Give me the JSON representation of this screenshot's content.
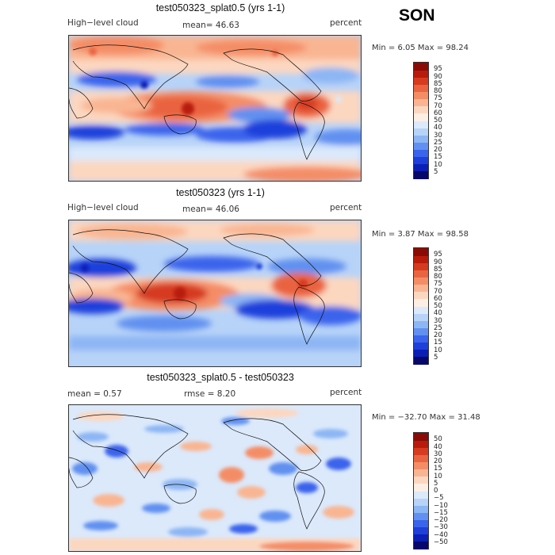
{
  "season": "SON",
  "colors": {
    "scale": [
      "#08086b",
      "#0b1fb5",
      "#1f3fdb",
      "#3a64ec",
      "#6190f0",
      "#8db6f4",
      "#b7d3f8",
      "#dbe9fb",
      "#fdeee4",
      "#fcd7c0",
      "#f9b592",
      "#f48d66",
      "#ea6441",
      "#d63b20",
      "#b81b0b",
      "#8a0a05"
    ]
  },
  "panels": [
    {
      "title": "test050323_splat0.5 (yrs 1-1)",
      "left_label": "High−level cloud",
      "center_label": "mean=  46.63",
      "right_label": "percent",
      "stats": "Min =    6.05 Max =   98.24",
      "colorbar_ticks": [
        "95",
        "90",
        "85",
        "80",
        "75",
        "70",
        "60",
        "50",
        "40",
        "30",
        "25",
        "20",
        "15",
        "10",
        "5"
      ]
    },
    {
      "title": "test050323 (yrs 1-1)",
      "left_label": "High−level cloud",
      "center_label": "mean=  46.06",
      "right_label": "percent",
      "stats": "Min =    3.87 Max =   98.58",
      "colorbar_ticks": [
        "95",
        "90",
        "85",
        "80",
        "75",
        "70",
        "60",
        "50",
        "40",
        "30",
        "25",
        "20",
        "15",
        "10",
        "5"
      ]
    },
    {
      "title": "test050323_splat0.5 - test050323",
      "left_label": "mean =    0.57",
      "center_label": "rmse =    8.20",
      "right_label": "percent",
      "stats": "Min = −32.70 Max =   31.48",
      "colorbar_ticks": [
        "50",
        "40",
        "30",
        "20",
        "15",
        "10",
        "5",
        "0",
        "−5",
        "−10",
        "−15",
        "−20",
        "−30",
        "−40",
        "−50"
      ]
    }
  ]
}
